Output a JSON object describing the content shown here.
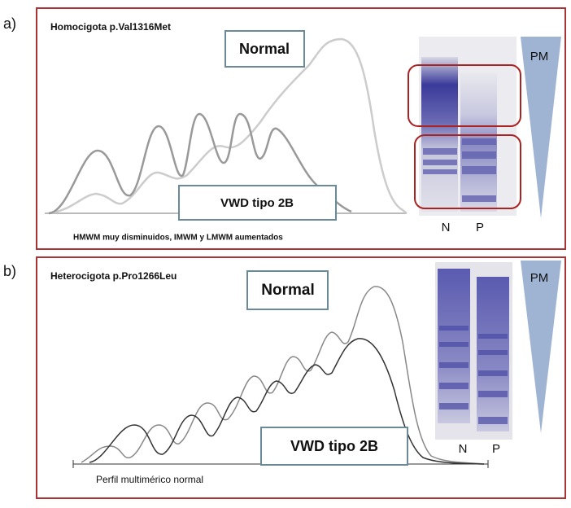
{
  "panel_a": {
    "letter": "a)",
    "title": "Homocigota p.Val1316Met",
    "normal_label": "Normal",
    "patient_label": "VWD tipo 2B",
    "caption": "HMWM muy disminuidos, IMWM y LMWM aumentados",
    "pm": "PM",
    "lane_n": "N",
    "lane_p": "P"
  },
  "panel_b": {
    "letter": "b)",
    "title": "Heterocigota p.Pro1266Leu",
    "normal_label": "Normal",
    "patient_label": "VWD tipo 2B",
    "caption": "Perfil multimérico normal",
    "pm": "PM",
    "lane_n": "N",
    "lane_p": "P"
  }
}
